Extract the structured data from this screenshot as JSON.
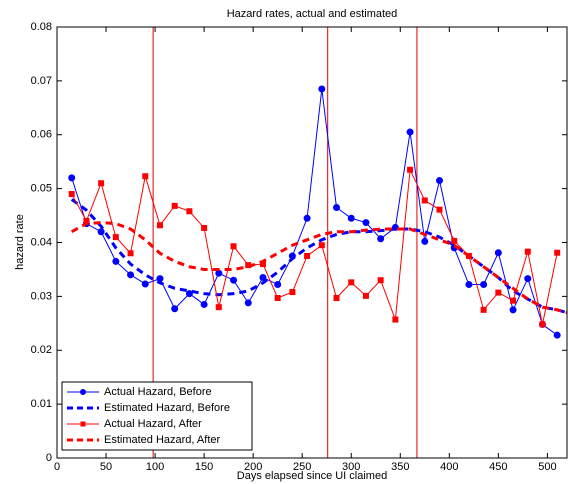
{
  "chart_data": {
    "type": "line",
    "title": "Hazard rates, actual and estimated",
    "xlabel": "Days elapsed since UI claimed",
    "ylabel": "hazard rate",
    "xlim": [
      0,
      520
    ],
    "xticks": [
      0,
      50,
      100,
      150,
      200,
      250,
      300,
      350,
      400,
      450,
      500
    ],
    "ylim": [
      0,
      0.08
    ],
    "yticks": [
      0,
      0.01,
      0.02,
      0.03,
      0.04,
      0.05,
      0.06,
      0.07,
      0.08
    ],
    "vlines": [
      98,
      276,
      367
    ],
    "vline_color": "#e00000",
    "legend": "lower left",
    "series": [
      {
        "name": "Actual Hazard, Before",
        "color": "#0000ff",
        "style": "solid",
        "marker": "circle",
        "x": [
          15,
          30,
          45,
          60,
          75,
          90,
          105,
          120,
          135,
          150,
          165,
          180,
          195,
          210,
          225,
          240,
          255,
          270,
          285,
          300,
          315,
          330,
          345,
          360,
          375,
          390,
          405,
          420,
          435,
          450,
          465,
          480,
          495,
          510
        ],
        "values": [
          0.052,
          0.0435,
          0.042,
          0.0365,
          0.034,
          0.0323,
          0.0333,
          0.0277,
          0.0305,
          0.0285,
          0.0343,
          0.033,
          0.0288,
          0.0335,
          0.0322,
          0.0375,
          0.0445,
          0.0685,
          0.0465,
          0.0445,
          0.0437,
          0.0407,
          0.0428,
          0.0605,
          0.0402,
          0.0515,
          0.039,
          0.0322,
          0.0322,
          0.0381,
          0.0275,
          0.0333,
          0.0248,
          0.0228
        ]
      },
      {
        "name": "Estimated Hazard, Before",
        "color": "#0000ff",
        "style": "dashed",
        "marker": "none",
        "x": [
          15,
          30,
          45,
          60,
          75,
          90,
          105,
          120,
          135,
          150,
          165,
          180,
          195,
          210,
          225,
          240,
          255,
          270,
          285,
          300,
          315,
          330,
          345,
          360,
          375,
          390,
          405,
          420,
          435,
          450,
          465,
          480,
          495,
          510,
          520
        ],
        "values": [
          0.048,
          0.046,
          0.043,
          0.039,
          0.036,
          0.034,
          0.0325,
          0.0315,
          0.031,
          0.0305,
          0.0303,
          0.0305,
          0.031,
          0.0325,
          0.0345,
          0.037,
          0.039,
          0.0405,
          0.0415,
          0.042,
          0.042,
          0.0422,
          0.0425,
          0.0425,
          0.042,
          0.041,
          0.0395,
          0.0375,
          0.0355,
          0.0335,
          0.031,
          0.0295,
          0.028,
          0.0275,
          0.027
        ]
      },
      {
        "name": "Actual Hazard, After",
        "color": "#ff0000",
        "style": "solid",
        "marker": "square",
        "x": [
          15,
          30,
          45,
          60,
          75,
          90,
          105,
          120,
          135,
          150,
          165,
          180,
          195,
          210,
          225,
          240,
          255,
          270,
          285,
          300,
          315,
          330,
          345,
          360,
          375,
          390,
          405,
          420,
          435,
          450,
          465,
          480,
          495,
          510
        ],
        "values": [
          0.049,
          0.044,
          0.051,
          0.041,
          0.038,
          0.0523,
          0.0432,
          0.0468,
          0.0458,
          0.0427,
          0.028,
          0.0393,
          0.0358,
          0.036,
          0.0297,
          0.0308,
          0.0375,
          0.0395,
          0.0297,
          0.0326,
          0.0301,
          0.033,
          0.0257,
          0.0535,
          0.0478,
          0.0461,
          0.0403,
          0.0375,
          0.0275,
          0.0307,
          0.0292,
          0.0383,
          0.0248,
          0.0381
        ]
      },
      {
        "name": "Estimated Hazard, After",
        "color": "#ff0000",
        "style": "dashed",
        "marker": "none",
        "x": [
          15,
          30,
          45,
          60,
          75,
          90,
          105,
          120,
          135,
          150,
          165,
          180,
          195,
          210,
          225,
          240,
          255,
          270,
          285,
          300,
          315,
          330,
          345,
          360,
          375,
          390,
          405,
          420,
          435,
          450,
          465,
          480,
          495,
          510,
          520
        ],
        "values": [
          0.042,
          0.0435,
          0.0437,
          0.0435,
          0.0425,
          0.0405,
          0.038,
          0.0365,
          0.0355,
          0.035,
          0.035,
          0.035,
          0.0355,
          0.0365,
          0.038,
          0.0395,
          0.0405,
          0.0415,
          0.042,
          0.042,
          0.0423,
          0.0425,
          0.0425,
          0.0425,
          0.0415,
          0.0405,
          0.0395,
          0.0375,
          0.0355,
          0.0335,
          0.0315,
          0.0295,
          0.028,
          0.0275,
          0.027
        ]
      }
    ]
  }
}
